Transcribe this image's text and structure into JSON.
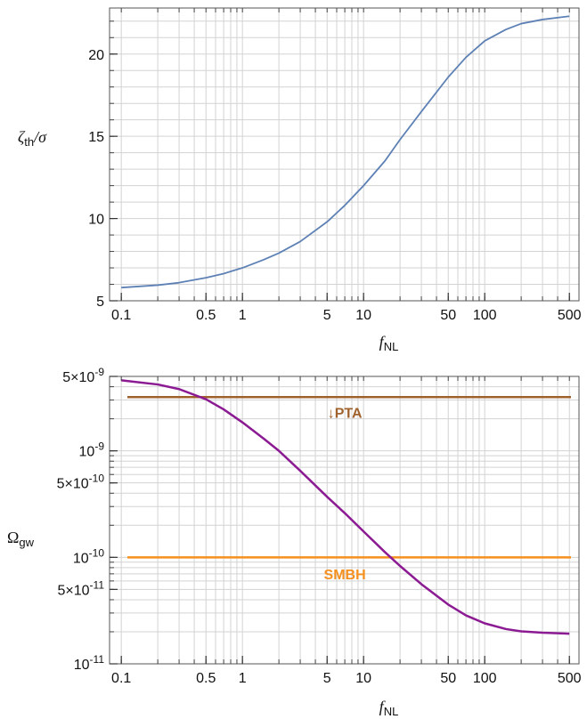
{
  "chart_data": [
    {
      "type": "line",
      "x_scale": "log",
      "y_scale": "linear",
      "xlim": [
        0.08,
        600
      ],
      "ylim": [
        5,
        22.8
      ],
      "xlabel": "f_NL",
      "ylabel": "ζ_th/σ",
      "x_ticks": [
        {
          "value": 0.1,
          "label": "0.1"
        },
        {
          "value": 0.5,
          "label": "0.5"
        },
        {
          "value": 1,
          "label": "1"
        },
        {
          "value": 5,
          "label": "5"
        },
        {
          "value": 10,
          "label": "10"
        },
        {
          "value": 50,
          "label": "50"
        },
        {
          "value": 100,
          "label": "100"
        },
        {
          "value": 500,
          "label": "500"
        }
      ],
      "y_ticks": [
        {
          "value": 5,
          "label": "5"
        },
        {
          "value": 10,
          "label": "10"
        },
        {
          "value": 15,
          "label": "15"
        },
        {
          "value": 20,
          "label": "20"
        }
      ],
      "grid": true,
      "series": [
        {
          "color": "#5e81b5",
          "x": [
            0.1,
            0.2,
            0.3,
            0.5,
            0.7,
            1,
            1.5,
            2,
            3,
            5,
            7,
            10,
            15,
            20,
            30,
            50,
            70,
            100,
            150,
            200,
            300,
            500
          ],
          "y": [
            5.8,
            5.95,
            6.1,
            6.4,
            6.65,
            7.0,
            7.5,
            7.9,
            8.6,
            9.8,
            10.8,
            12.0,
            13.5,
            14.8,
            16.5,
            18.6,
            19.8,
            20.8,
            21.5,
            21.85,
            22.1,
            22.3
          ]
        }
      ]
    },
    {
      "type": "line",
      "x_scale": "log",
      "y_scale": "log",
      "xlim": [
        0.08,
        600
      ],
      "ylim": [
        1e-11,
        5e-09
      ],
      "xlabel": "f_NL",
      "ylabel": "Ω_gw",
      "x_ticks": [
        {
          "value": 0.1,
          "label": "0.1"
        },
        {
          "value": 0.5,
          "label": "0.5"
        },
        {
          "value": 1,
          "label": "1"
        },
        {
          "value": 5,
          "label": "5"
        },
        {
          "value": 10,
          "label": "10"
        },
        {
          "value": 50,
          "label": "50"
        },
        {
          "value": 100,
          "label": "100"
        },
        {
          "value": 500,
          "label": "500"
        }
      ],
      "y_ticks": [
        {
          "value": 1e-11,
          "mant": "",
          "exp": "-11"
        },
        {
          "value": 5e-11,
          "mant": "5×",
          "exp": "-11"
        },
        {
          "value": 1e-10,
          "mant": "",
          "exp": "-10"
        },
        {
          "value": 5e-10,
          "mant": "5×",
          "exp": "-10"
        },
        {
          "value": 1e-09,
          "mant": "",
          "exp": "-9"
        },
        {
          "value": 5e-09,
          "mant": "5×",
          "exp": "-9"
        }
      ],
      "grid": true,
      "series": [
        {
          "color": "#8b1a93",
          "x": [
            0.1,
            0.2,
            0.3,
            0.5,
            0.7,
            1,
            1.5,
            2,
            3,
            5,
            7,
            10,
            15,
            20,
            30,
            50,
            70,
            100,
            150,
            200,
            300,
            500
          ],
          "y": [
            4.6e-09,
            4.2e-09,
            3.8e-09,
            3.05e-09,
            2.45e-09,
            1.85e-09,
            1.3e-09,
            1e-09,
            6.5e-10,
            3.7e-10,
            2.6e-10,
            1.75e-10,
            1.12e-10,
            8.3e-11,
            5.6e-11,
            3.6e-11,
            2.85e-11,
            2.4e-11,
            2.12e-11,
            2.02e-11,
            1.96e-11,
            1.92e-11
          ]
        }
      ],
      "hlines": [
        {
          "value": 3.2e-09,
          "color": "#a0622d",
          "label": "↓PTA",
          "label_x": 7,
          "label_y": 2.3e-09
        },
        {
          "value": 1e-10,
          "color": "#f5901e",
          "label": "SMBH",
          "label_x": 7,
          "label_y": 7e-11
        }
      ]
    }
  ]
}
